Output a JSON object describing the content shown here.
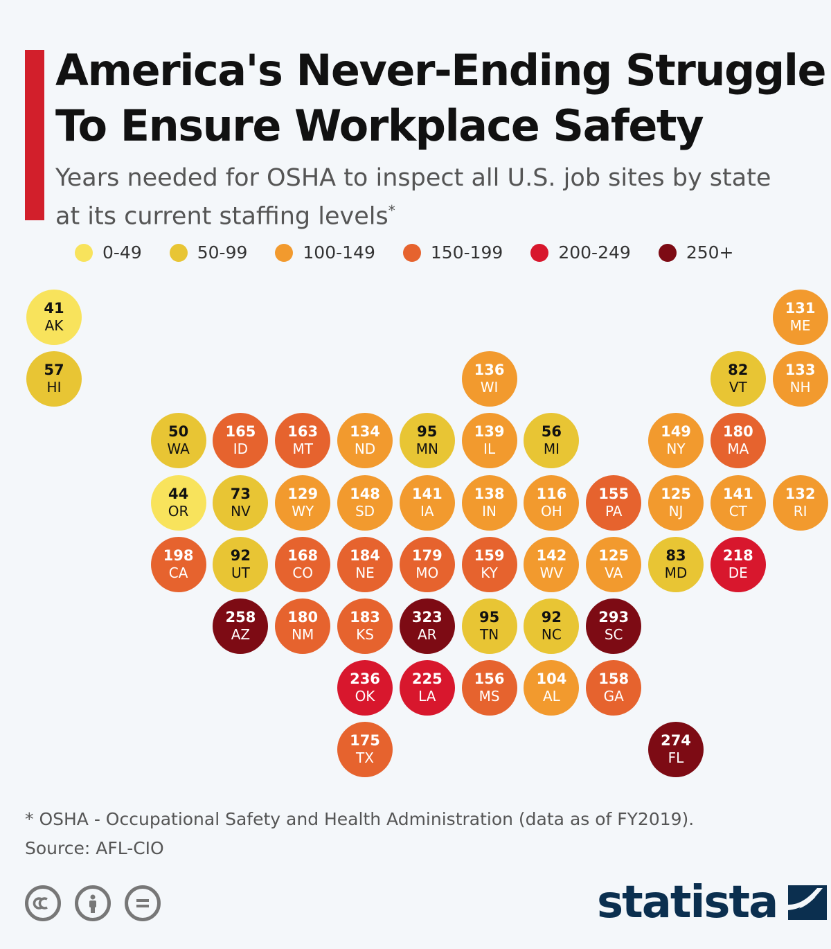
{
  "header": {
    "title_line1": "America's Never-Ending Struggle",
    "title_line2": "To Ensure Workplace Safety",
    "subtitle_line1": "Years needed for OSHA to inspect all U.S. job sites by state",
    "subtitle_line2": "at its current staffing levels",
    "subtitle_mark": "*",
    "accent_color": "#d21f2b"
  },
  "legend": [
    {
      "label": "0-49",
      "color": "#f8e35c",
      "text_color": "#111111"
    },
    {
      "label": "50-99",
      "color": "#e8c534",
      "text_color": "#111111"
    },
    {
      "label": "100-149",
      "color": "#f29a2e",
      "text_color": "#ffffff"
    },
    {
      "label": "150-199",
      "color": "#e6632e",
      "text_color": "#ffffff"
    },
    {
      "label": "200-249",
      "color": "#d8172d",
      "text_color": "#ffffff"
    },
    {
      "label": "250+",
      "color": "#7d0b14",
      "text_color": "#ffffff"
    }
  ],
  "map_data": {
    "unit": "years",
    "states": [
      {
        "abbr": "AK",
        "value": 41,
        "row": 0,
        "col": 0
      },
      {
        "abbr": "ME",
        "value": 131,
        "row": 0,
        "col": 12
      },
      {
        "abbr": "HI",
        "value": 57,
        "row": 1,
        "col": 0
      },
      {
        "abbr": "WI",
        "value": 136,
        "row": 1,
        "col": 7
      },
      {
        "abbr": "VT",
        "value": 82,
        "row": 1,
        "col": 11
      },
      {
        "abbr": "NH",
        "value": 133,
        "row": 1,
        "col": 12
      },
      {
        "abbr": "WA",
        "value": 50,
        "row": 2,
        "col": 2
      },
      {
        "abbr": "ID",
        "value": 165,
        "row": 2,
        "col": 3
      },
      {
        "abbr": "MT",
        "value": 163,
        "row": 2,
        "col": 4
      },
      {
        "abbr": "ND",
        "value": 134,
        "row": 2,
        "col": 5
      },
      {
        "abbr": "MN",
        "value": 95,
        "row": 2,
        "col": 6
      },
      {
        "abbr": "IL",
        "value": 139,
        "row": 2,
        "col": 7
      },
      {
        "abbr": "MI",
        "value": 56,
        "row": 2,
        "col": 8
      },
      {
        "abbr": "NY",
        "value": 149,
        "row": 2,
        "col": 10
      },
      {
        "abbr": "MA",
        "value": 180,
        "row": 2,
        "col": 11
      },
      {
        "abbr": "OR",
        "value": 44,
        "row": 3,
        "col": 2
      },
      {
        "abbr": "NV",
        "value": 73,
        "row": 3,
        "col": 3
      },
      {
        "abbr": "WY",
        "value": 129,
        "row": 3,
        "col": 4
      },
      {
        "abbr": "SD",
        "value": 148,
        "row": 3,
        "col": 5
      },
      {
        "abbr": "IA",
        "value": 141,
        "row": 3,
        "col": 6
      },
      {
        "abbr": "IN",
        "value": 138,
        "row": 3,
        "col": 7
      },
      {
        "abbr": "OH",
        "value": 116,
        "row": 3,
        "col": 8
      },
      {
        "abbr": "PA",
        "value": 155,
        "row": 3,
        "col": 9
      },
      {
        "abbr": "NJ",
        "value": 125,
        "row": 3,
        "col": 10
      },
      {
        "abbr": "CT",
        "value": 141,
        "row": 3,
        "col": 11
      },
      {
        "abbr": "RI",
        "value": 132,
        "row": 3,
        "col": 12
      },
      {
        "abbr": "CA",
        "value": 198,
        "row": 4,
        "col": 2
      },
      {
        "abbr": "UT",
        "value": 92,
        "row": 4,
        "col": 3
      },
      {
        "abbr": "CO",
        "value": 168,
        "row": 4,
        "col": 4
      },
      {
        "abbr": "NE",
        "value": 184,
        "row": 4,
        "col": 5
      },
      {
        "abbr": "MO",
        "value": 179,
        "row": 4,
        "col": 6
      },
      {
        "abbr": "KY",
        "value": 159,
        "row": 4,
        "col": 7
      },
      {
        "abbr": "WV",
        "value": 142,
        "row": 4,
        "col": 8
      },
      {
        "abbr": "VA",
        "value": 125,
        "row": 4,
        "col": 9
      },
      {
        "abbr": "MD",
        "value": 83,
        "row": 4,
        "col": 10
      },
      {
        "abbr": "DE",
        "value": 218,
        "row": 4,
        "col": 11
      },
      {
        "abbr": "AZ",
        "value": 258,
        "row": 5,
        "col": 3
      },
      {
        "abbr": "NM",
        "value": 180,
        "row": 5,
        "col": 4
      },
      {
        "abbr": "KS",
        "value": 183,
        "row": 5,
        "col": 5
      },
      {
        "abbr": "AR",
        "value": 323,
        "row": 5,
        "col": 6
      },
      {
        "abbr": "TN",
        "value": 95,
        "row": 5,
        "col": 7
      },
      {
        "abbr": "NC",
        "value": 92,
        "row": 5,
        "col": 8
      },
      {
        "abbr": "SC",
        "value": 293,
        "row": 5,
        "col": 9
      },
      {
        "abbr": "OK",
        "value": 236,
        "row": 6,
        "col": 5
      },
      {
        "abbr": "LA",
        "value": 225,
        "row": 6,
        "col": 6
      },
      {
        "abbr": "MS",
        "value": 156,
        "row": 6,
        "col": 7
      },
      {
        "abbr": "AL",
        "value": 104,
        "row": 6,
        "col": 8
      },
      {
        "abbr": "GA",
        "value": 158,
        "row": 6,
        "col": 9
      },
      {
        "abbr": "TX",
        "value": 175,
        "row": 7,
        "col": 5
      },
      {
        "abbr": "FL",
        "value": 274,
        "row": 7,
        "col": 10
      }
    ]
  },
  "footer": {
    "note": "* OSHA - Occupational Safety and Health Administration (data as of FY2019).",
    "source": "Source: AFL-CIO",
    "license_icons": [
      "cc-icon",
      "attribution-icon",
      "no-derivatives-icon"
    ],
    "brand": "statista",
    "brand_color": "#0b2f4f"
  }
}
